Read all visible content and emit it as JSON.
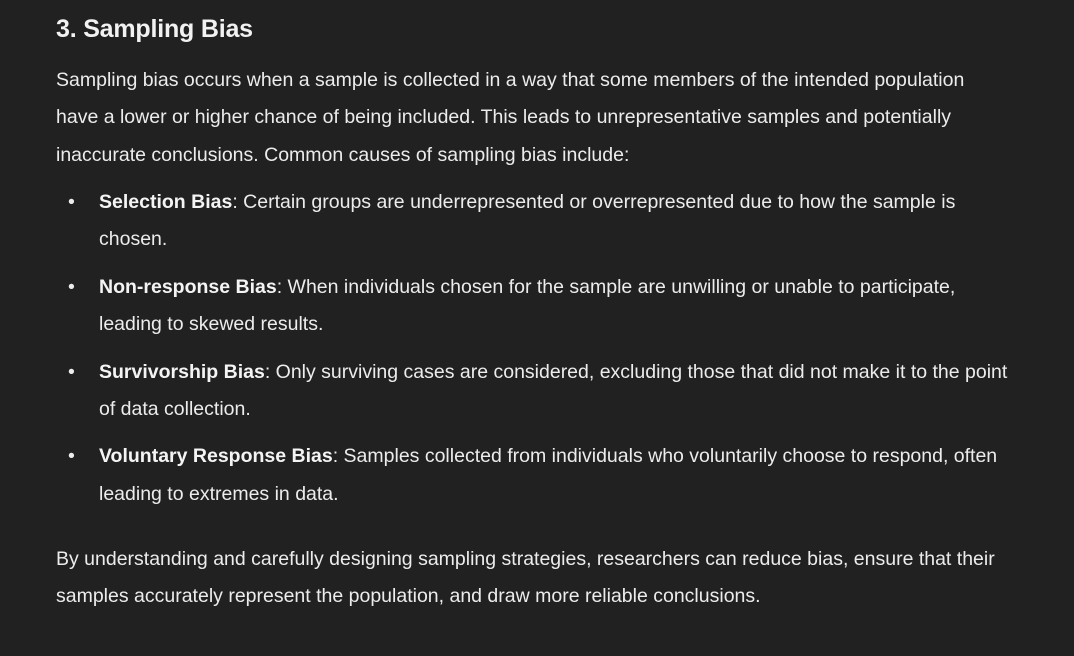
{
  "heading": "3. Sampling Bias",
  "intro": "Sampling bias occurs when a sample is collected in a way that some members of the intended population have a lower or higher chance of being included. This leads to unrepresentative samples and potentially inaccurate conclusions. Common causes of sampling bias include:",
  "items": [
    {
      "term": "Selection Bias",
      "text": ": Certain groups are underrepresented or overrepresented due to how the sample is chosen."
    },
    {
      "term": "Non-response Bias",
      "text": ": When individuals chosen for the sample are unwilling or unable to participate, leading to skewed results."
    },
    {
      "term": "Survivorship Bias",
      "text": ": Only surviving cases are considered, excluding those that did not make it to the point of data collection."
    },
    {
      "term": "Voluntary Response Bias",
      "text": ": Samples collected from individuals who voluntarily choose to respond, often leading to extremes in data."
    }
  ],
  "conclusion": "By understanding and carefully designing sampling strategies, researchers can reduce bias, ensure that their samples accurately represent the population, and draw more reliable conclusions."
}
